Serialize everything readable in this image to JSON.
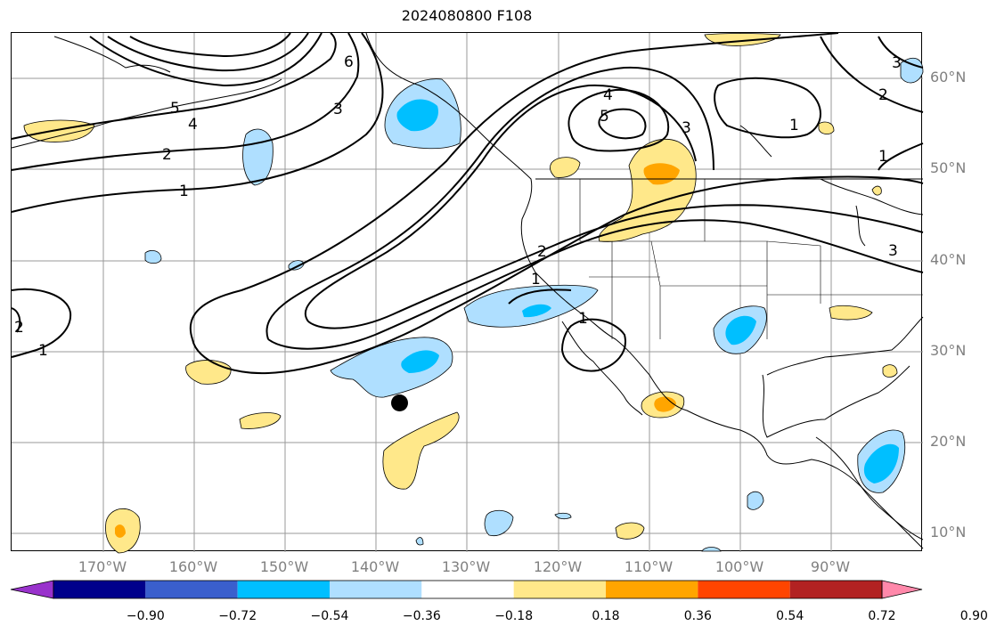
{
  "title": "2024080800 F108",
  "map": {
    "lat_labels": [
      "60°N",
      "50°N",
      "40°N",
      "30°N",
      "20°N",
      "10°N"
    ],
    "lon_labels": [
      "170°W",
      "160°W",
      "150°W",
      "140°W",
      "130°W",
      "120°W",
      "110°W",
      "100°W",
      "90°W"
    ],
    "contour_labels": [
      "1",
      "2",
      "3",
      "4",
      "5",
      "6"
    ],
    "storm_marker": "storm-position-dot"
  },
  "colorbar": {
    "ticks": [
      "−0.90",
      "−0.72",
      "−0.54",
      "−0.36",
      "−0.18",
      "0.18",
      "0.36",
      "0.54",
      "0.72",
      "0.90"
    ],
    "colors": [
      "#9932cc",
      "#00008b",
      "#3a5fcd",
      "#00bfff",
      "#afdfff",
      "#ffffff",
      "#ffe88a",
      "#ffa500",
      "#ff4500",
      "#b22222",
      "#ff88aa"
    ]
  },
  "colors": {
    "negative_light": "#afdfff",
    "negative_strong": "#00bfff",
    "positive_light": "#ffe88a",
    "positive_strong": "#ffa500",
    "axis_label": "#808080"
  }
}
